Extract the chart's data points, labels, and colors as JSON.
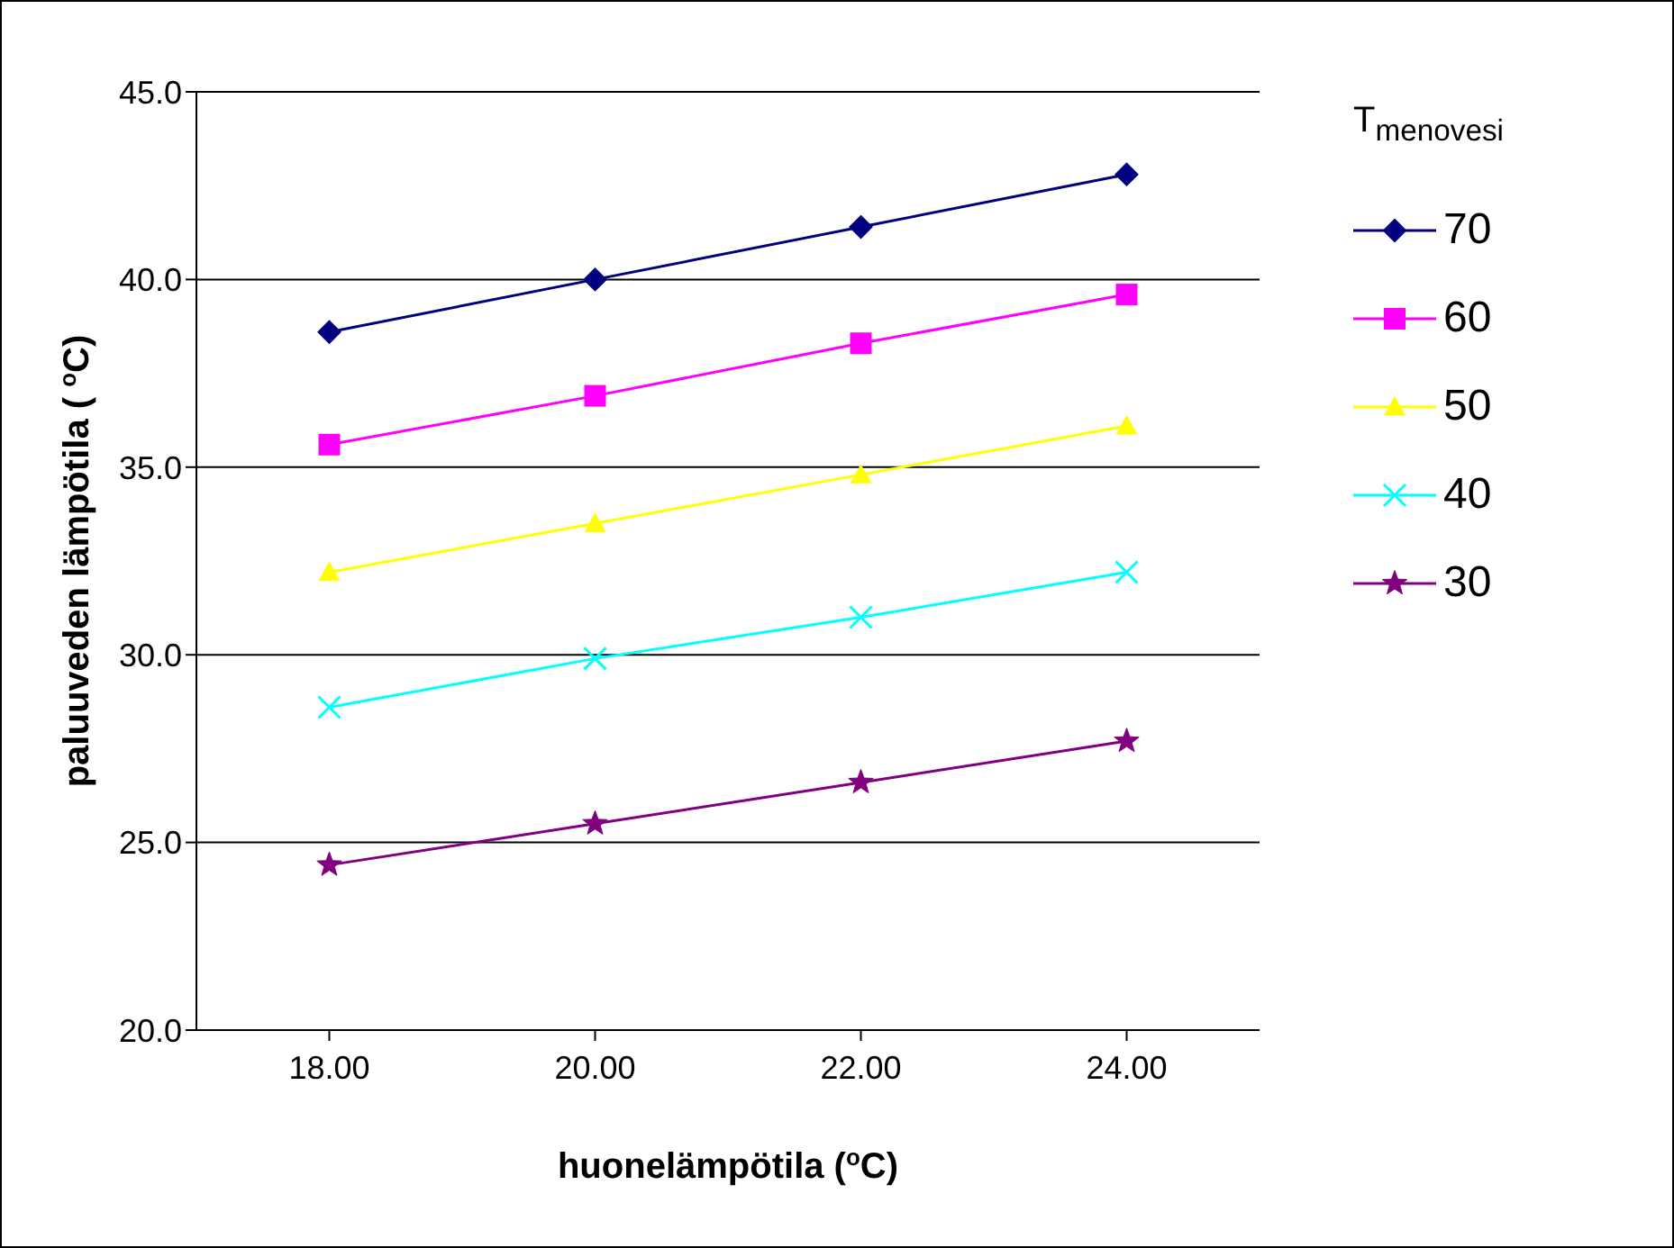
{
  "chart_data": {
    "type": "line",
    "xlabel": "huonelämpötila ($^{o}$C)",
    "ylabel": "paluuveden lämpötila ( $^{o}$C)",
    "legend_title": "T$_{menovesi}$",
    "categories": [
      "18.00",
      "20.00",
      "22.00",
      "24.00"
    ],
    "series": [
      {
        "name": "70",
        "color": "#000080",
        "marker": "diamond",
        "values": [
          38.6,
          40.0,
          41.4,
          42.8
        ]
      },
      {
        "name": "60",
        "color": "#ff00ff",
        "marker": "square",
        "values": [
          35.6,
          36.9,
          38.3,
          39.6
        ]
      },
      {
        "name": "50",
        "color": "#ffff00",
        "marker": "triangle",
        "values": [
          32.2,
          33.5,
          34.8,
          36.1
        ]
      },
      {
        "name": "40",
        "color": "#00ffff",
        "marker": "cross",
        "values": [
          28.6,
          29.9,
          31.0,
          32.2
        ]
      },
      {
        "name": "30",
        "color": "#800080",
        "marker": "star",
        "values": [
          24.4,
          25.5,
          26.6,
          27.7
        ]
      }
    ],
    "ylim": [
      20,
      45
    ],
    "yticks": [
      {
        "value": 20,
        "label": "20.0"
      },
      {
        "value": 25,
        "label": "25.0"
      },
      {
        "value": 30,
        "label": "30.0"
      },
      {
        "value": 35,
        "label": "35.0"
      },
      {
        "value": 40,
        "label": "40.0"
      },
      {
        "value": 45,
        "label": "45.0"
      }
    ],
    "grid": "y",
    "legend": "right"
  }
}
